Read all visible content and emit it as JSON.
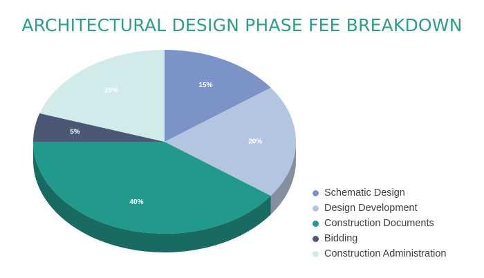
{
  "chart_data": {
    "type": "pie",
    "title": "ARCHITECTURAL DESIGN PHASE FEE BREAKDOWN",
    "categories": [
      "Schematic Design",
      "Design Development",
      "Construction Documents",
      "Bidding",
      "Construction Administration"
    ],
    "values": [
      15,
      20,
      40,
      5,
      20
    ],
    "labels": [
      "15%",
      "20%",
      "40%",
      "5%",
      "20%"
    ],
    "colors": [
      "#7b93c6",
      "#b3c5e0",
      "#229a8b",
      "#4a5876",
      "#d1ebea"
    ],
    "side_colors": [
      "#5d72a0",
      "#858fa0",
      "#176b61",
      "#323d52",
      "#a6c3c1"
    ],
    "legend_position": "bottom-right",
    "style": "3d"
  }
}
